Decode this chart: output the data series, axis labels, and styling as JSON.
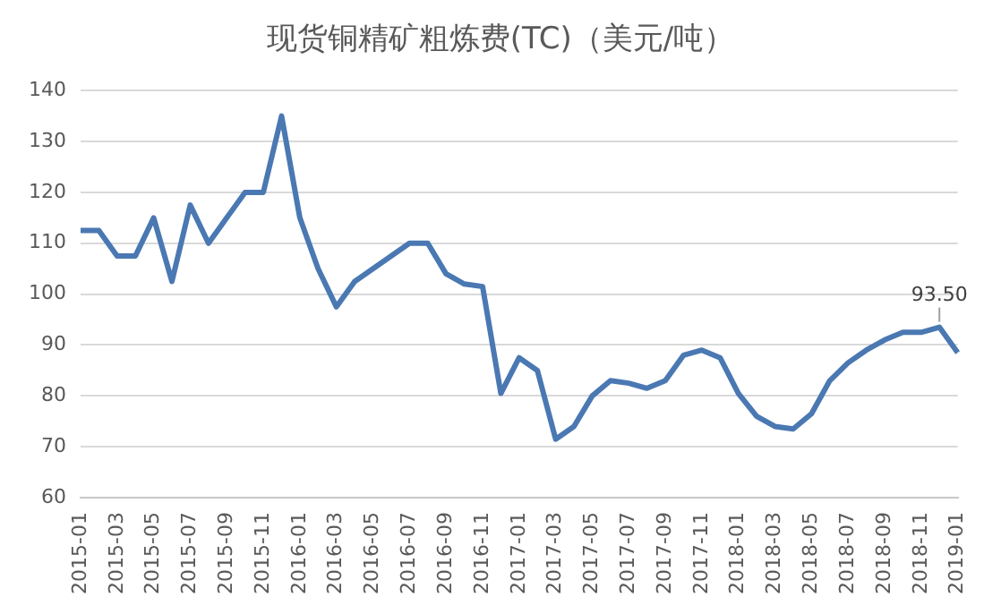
{
  "chart_data": {
    "type": "line",
    "title": "现货铜精矿粗炼费(TC)（美元/吨）",
    "categories": [
      "2015-01",
      null,
      "2015-03",
      null,
      "2015-05",
      null,
      "2015-07",
      null,
      "2015-09",
      null,
      "2015-11",
      null,
      "2016-01",
      null,
      "2016-03",
      null,
      "2016-05",
      null,
      "2016-07",
      null,
      "2016-09",
      null,
      "2016-11",
      null,
      "2017-01",
      null,
      "2017-03",
      null,
      "2017-05",
      null,
      "2017-07",
      null,
      "2017-09",
      null,
      "2017-11",
      null,
      "2018-01",
      null,
      "2018-03",
      null,
      "2018-05",
      null,
      "2018-07",
      null,
      "2018-09",
      null,
      "2018-11",
      null,
      "2019-01"
    ],
    "series": [
      {
        "color": "#4a78b2",
        "values": [
          112.5,
          112.5,
          107.5,
          107.5,
          115,
          102.5,
          117.5,
          110,
          115,
          120,
          120,
          135,
          115,
          105,
          97.5,
          102.5,
          105,
          107.5,
          110,
          110,
          104,
          102,
          101.5,
          80.5,
          87.5,
          85,
          71.5,
          74,
          80,
          83,
          82.5,
          81.5,
          83,
          88,
          89,
          87.5,
          80.5,
          76,
          74,
          73.5,
          76.5,
          83,
          86.5,
          89,
          91,
          92.5,
          92.5,
          93.5,
          88.5
        ],
        "value_labels": [
          null,
          null,
          null,
          null,
          null,
          null,
          null,
          null,
          null,
          null,
          null,
          null,
          null,
          null,
          null,
          null,
          null,
          null,
          null,
          null,
          null,
          null,
          null,
          null,
          null,
          null,
          null,
          null,
          null,
          null,
          null,
          null,
          null,
          null,
          null,
          null,
          null,
          null,
          null,
          null,
          null,
          null,
          null,
          null,
          null,
          null,
          null,
          "93.50",
          null
        ]
      }
    ],
    "ylim": [
      60,
      140
    ],
    "yticks": [
      60,
      70,
      80,
      90,
      100,
      110,
      120,
      130,
      140
    ],
    "grid": "y",
    "legend": false,
    "marker": "none",
    "line_style": "solid"
  }
}
